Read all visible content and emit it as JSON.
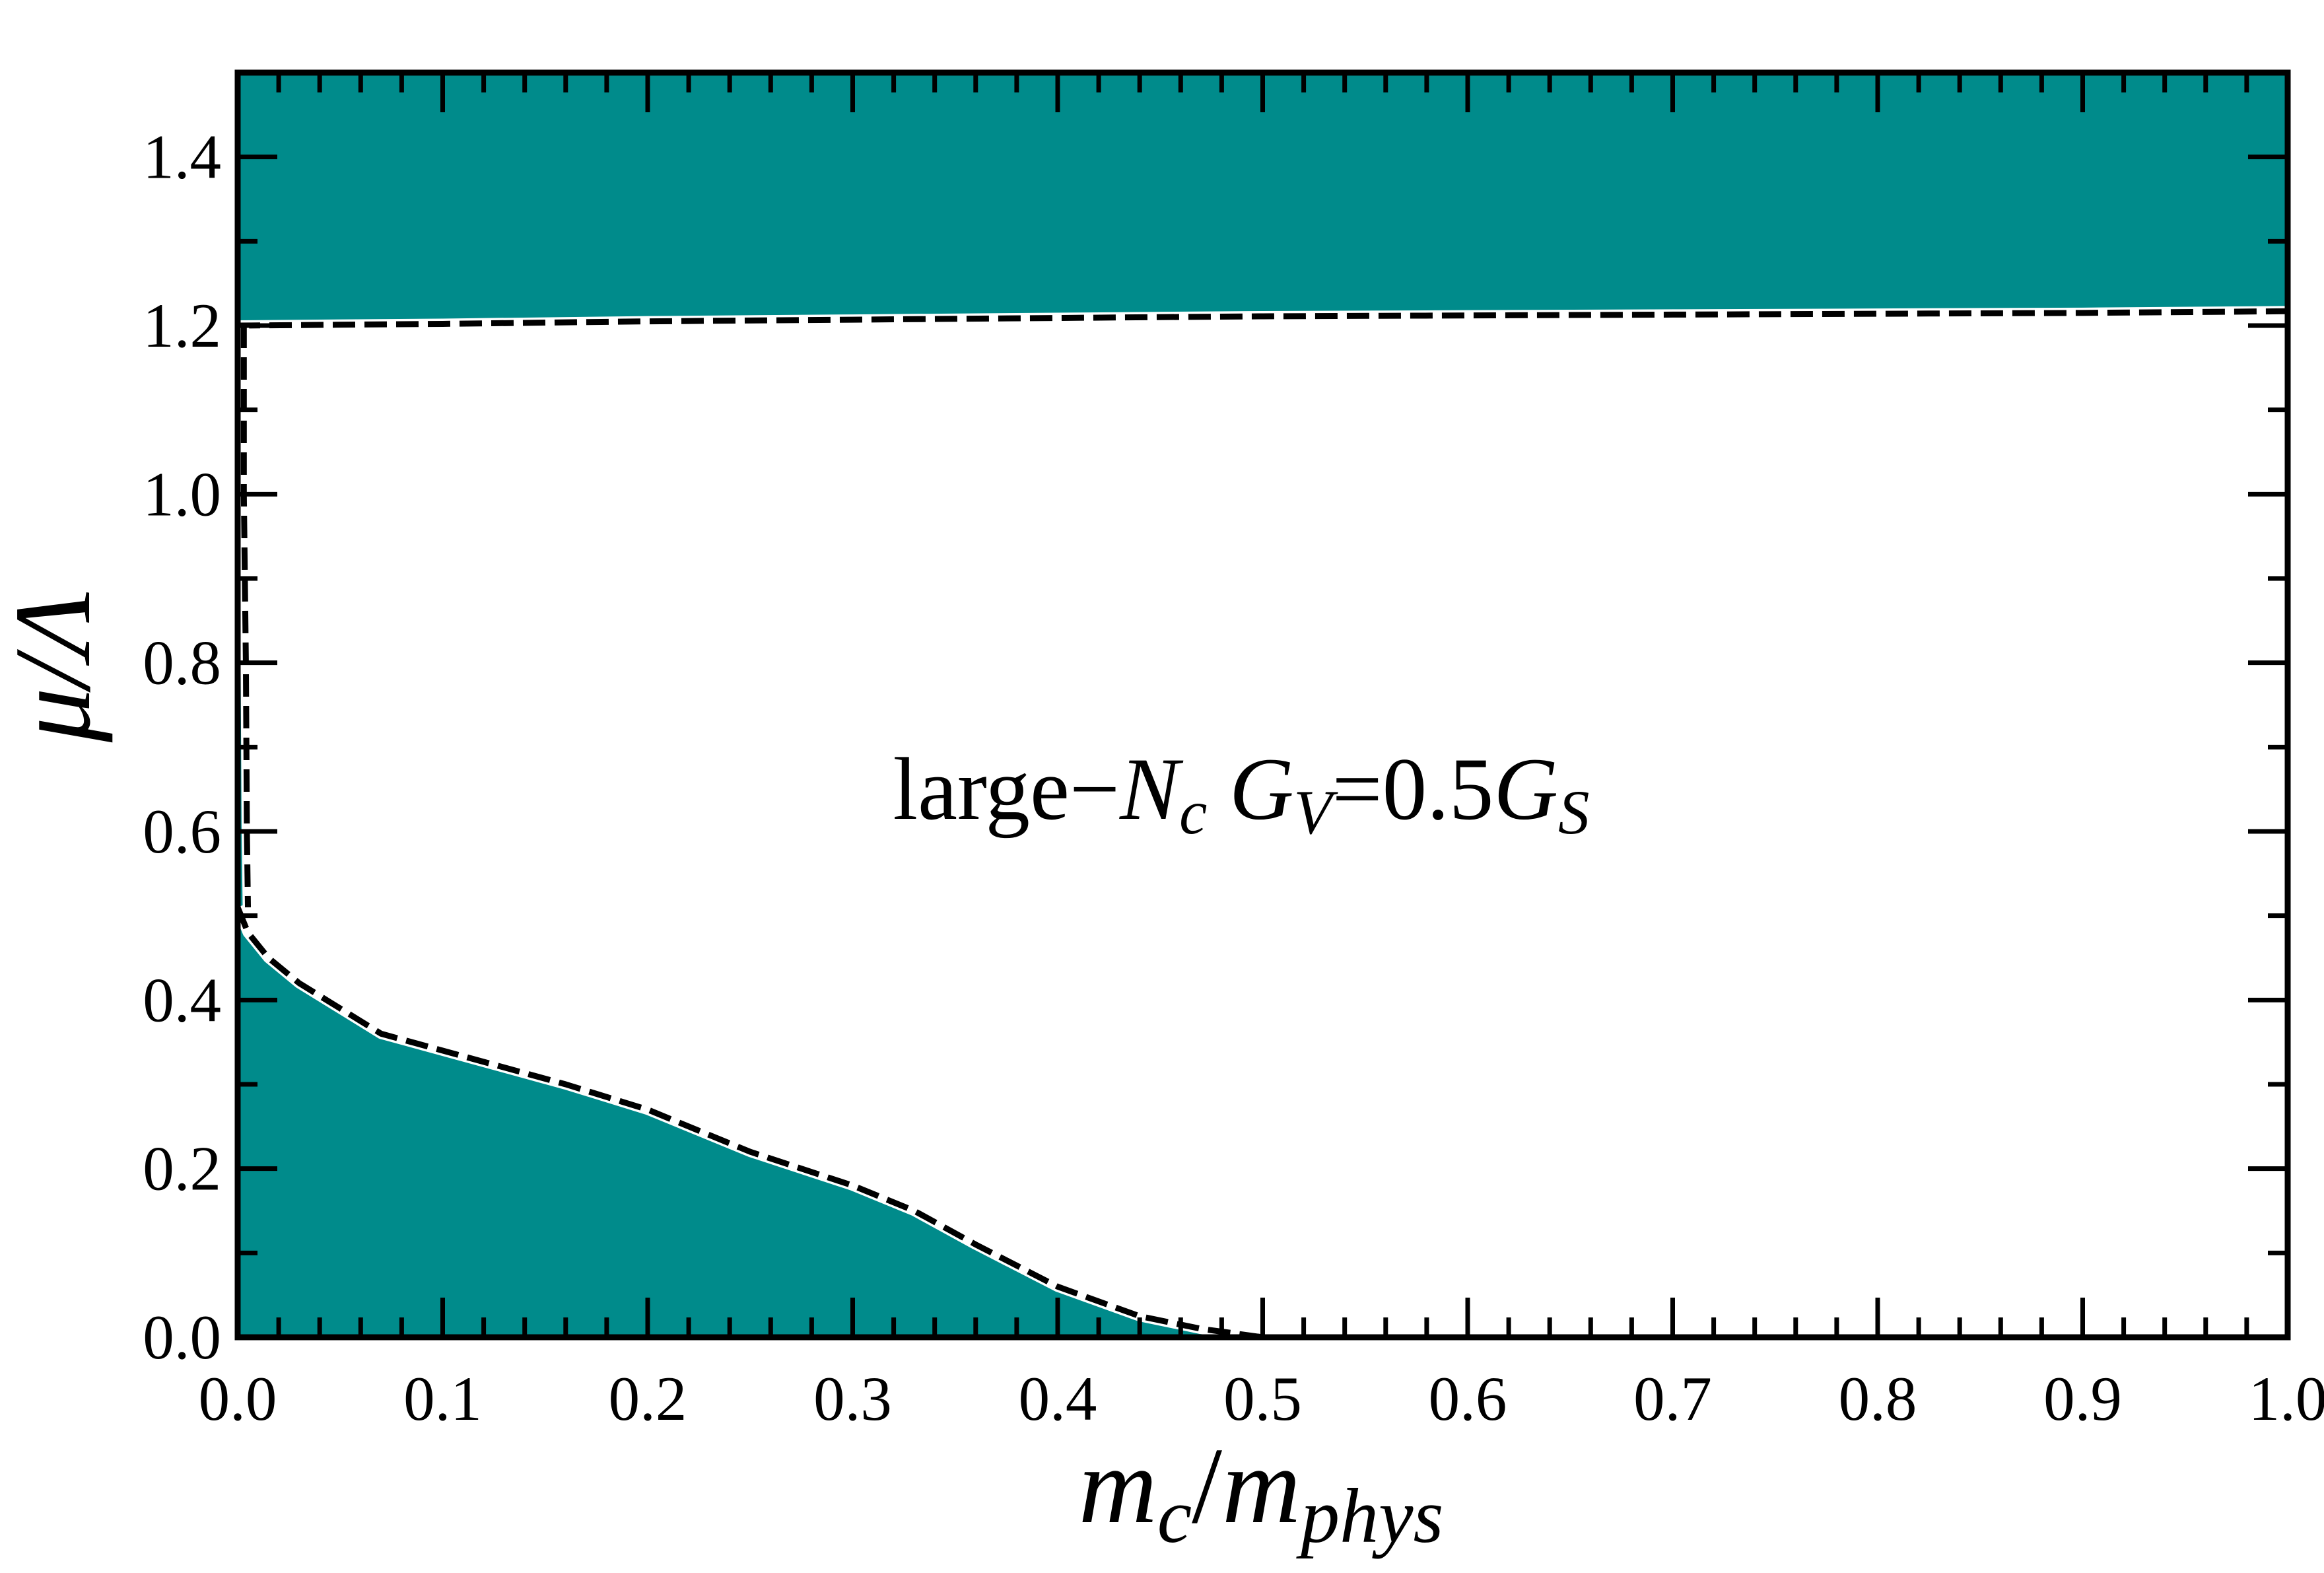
{
  "chart_data": {
    "type": "area",
    "xlabel": {
      "base": "m",
      "base_sub": "c",
      "sep": "/",
      "den": "m",
      "den_sub": "phys"
    },
    "ylabel": "μ/Λ",
    "xlim": [
      0.0,
      1.0
    ],
    "ylim": [
      0.0,
      1.5
    ],
    "x_ticks": [
      "0.0",
      "0.1",
      "0.2",
      "0.3",
      "0.4",
      "0.5",
      "0.6",
      "0.7",
      "0.8",
      "0.9",
      "1.0"
    ],
    "y_ticks": [
      "0.0",
      "0.2",
      "0.4",
      "0.6",
      "0.8",
      "1.0",
      "1.2",
      "1.4"
    ],
    "annotation": {
      "p1": "large",
      "dash": "−",
      "N": "N",
      "Nsub": "c",
      "G1": "G",
      "G1sub": "V",
      "eq": "=0.5",
      "G2": "G",
      "G2sub": "S"
    },
    "fill_color": "#008b8b",
    "boundary_style": "black dashed",
    "series": [
      {
        "region": "upper",
        "boundary": {
          "x": [
            0.0,
            0.1,
            0.2,
            0.3,
            0.4,
            0.5,
            0.6,
            0.7,
            0.8,
            0.9,
            1.0
          ],
          "y": [
            1.2,
            1.202,
            1.205,
            1.207,
            1.209,
            1.211,
            1.212,
            1.213,
            1.214,
            1.215,
            1.217
          ]
        }
      },
      {
        "region": "lower",
        "boundary": {
          "x": [
            0.0,
            0.005,
            0.015,
            0.03,
            0.05,
            0.07,
            0.1,
            0.13,
            0.16,
            0.2,
            0.25,
            0.3,
            0.33,
            0.36,
            0.4,
            0.44,
            0.47,
            0.5
          ],
          "y": [
            0.51,
            0.48,
            0.45,
            0.42,
            0.39,
            0.36,
            0.34,
            0.32,
            0.3,
            0.27,
            0.22,
            0.18,
            0.15,
            0.11,
            0.06,
            0.025,
            0.01,
            0.0
          ]
        }
      },
      {
        "region": "left-edge",
        "boundary": {
          "x": [
            0.003,
            0.003,
            0.004,
            0.0045,
            0.005
          ],
          "y": [
            1.2,
            1.0,
            0.8,
            0.6,
            0.51
          ]
        }
      }
    ]
  }
}
